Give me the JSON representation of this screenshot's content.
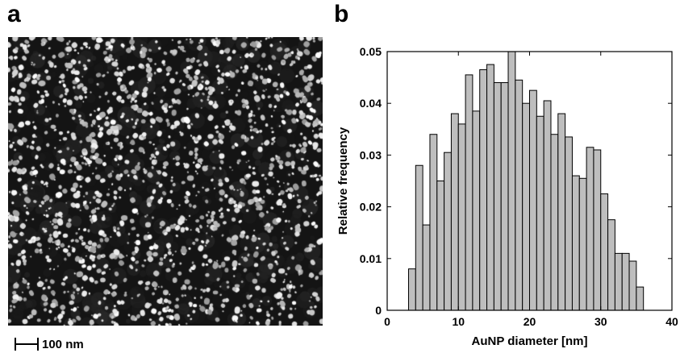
{
  "panel_a": {
    "letter": "a",
    "scalebar_label": "100 nm"
  },
  "panel_b": {
    "letter": "b"
  },
  "chart_data": {
    "type": "bar",
    "bin_width": 1,
    "bin_starts": [
      3,
      4,
      5,
      6,
      7,
      8,
      9,
      10,
      11,
      12,
      13,
      14,
      15,
      16,
      17,
      18,
      19,
      20,
      21,
      22,
      23,
      24,
      25,
      26,
      27,
      28,
      29,
      30,
      31,
      32,
      33,
      34,
      35
    ],
    "values": [
      0.008,
      0.028,
      0.0165,
      0.034,
      0.025,
      0.0305,
      0.038,
      0.036,
      0.0455,
      0.0385,
      0.0465,
      0.0475,
      0.044,
      0.044,
      0.05,
      0.0445,
      0.04,
      0.0425,
      0.0375,
      0.0405,
      0.034,
      0.038,
      0.0335,
      0.026,
      0.0255,
      0.0315,
      0.031,
      0.0225,
      0.0175,
      0.011,
      0.011,
      0.0095,
      0.0045
    ],
    "xlabel": "AuNP diameter [nm]",
    "ylabel": "Relative frequency",
    "xlim": [
      0,
      40
    ],
    "ylim": [
      0,
      0.05
    ],
    "xticks": [
      "0",
      "10",
      "20",
      "30",
      "40"
    ],
    "yticks": [
      "0",
      "0.01",
      "0.02",
      "0.03",
      "0.04",
      "0.05"
    ],
    "bar_color": "#bebebe",
    "edge_color": "#000000",
    "grid": false,
    "legend": "none"
  }
}
